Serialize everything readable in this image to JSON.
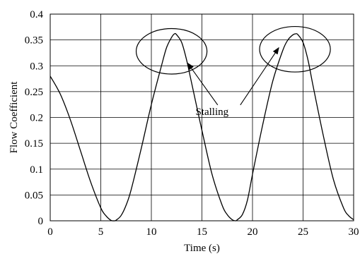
{
  "chart_data": {
    "type": "line",
    "title": "",
    "xlabel": "Time (s)",
    "ylabel": "Flow Coefficient",
    "xlim": [
      0,
      30
    ],
    "ylim": [
      0,
      0.4
    ],
    "xticks": [
      "0",
      "5",
      "10",
      "15",
      "20",
      "25",
      "30"
    ],
    "yticks": [
      "0",
      "0.05",
      "0.1",
      "0.15",
      "0.2",
      "0.25",
      "0.3",
      "0.35",
      "0.4"
    ],
    "grid": true,
    "legend": "none",
    "line_color": "#000000",
    "series": [
      {
        "x": [
          0,
          1,
          2,
          3,
          4,
          5,
          5.5,
          6,
          6.3,
          6.5,
          7,
          7.5,
          8,
          9,
          10,
          11,
          11.5,
          12,
          12.3,
          12.5,
          13,
          13.5,
          14,
          15,
          16,
          17,
          17.5,
          18,
          18.3,
          18.5,
          19,
          19.5,
          20,
          21,
          22,
          23,
          23.5,
          24,
          24.3,
          24.5,
          25,
          25.5,
          26,
          27,
          28,
          29,
          29.5,
          30
        ],
        "y": [
          0.28,
          0.245,
          0.195,
          0.135,
          0.075,
          0.025,
          0.01,
          0.001,
          0.0,
          0.001,
          0.01,
          0.03,
          0.06,
          0.14,
          0.225,
          0.3,
          0.335,
          0.355,
          0.362,
          0.36,
          0.345,
          0.31,
          0.265,
          0.175,
          0.09,
          0.03,
          0.012,
          0.002,
          0.0,
          0.002,
          0.012,
          0.04,
          0.09,
          0.185,
          0.27,
          0.33,
          0.35,
          0.36,
          0.362,
          0.36,
          0.345,
          0.31,
          0.26,
          0.165,
          0.08,
          0.025,
          0.01,
          0.002
        ]
      }
    ],
    "annotations": [
      {
        "text": "Stalling",
        "x": 16,
        "y": 0.205,
        "arrow_to": [
          [
            13.6,
            0.305
          ],
          [
            22.6,
            0.335
          ]
        ]
      }
    ],
    "highlight_ellipses": [
      {
        "cx": 12.0,
        "cy": 0.328,
        "rx": 3.5,
        "ry": 0.044
      },
      {
        "cx": 24.2,
        "cy": 0.332,
        "rx": 3.5,
        "ry": 0.044
      }
    ]
  }
}
